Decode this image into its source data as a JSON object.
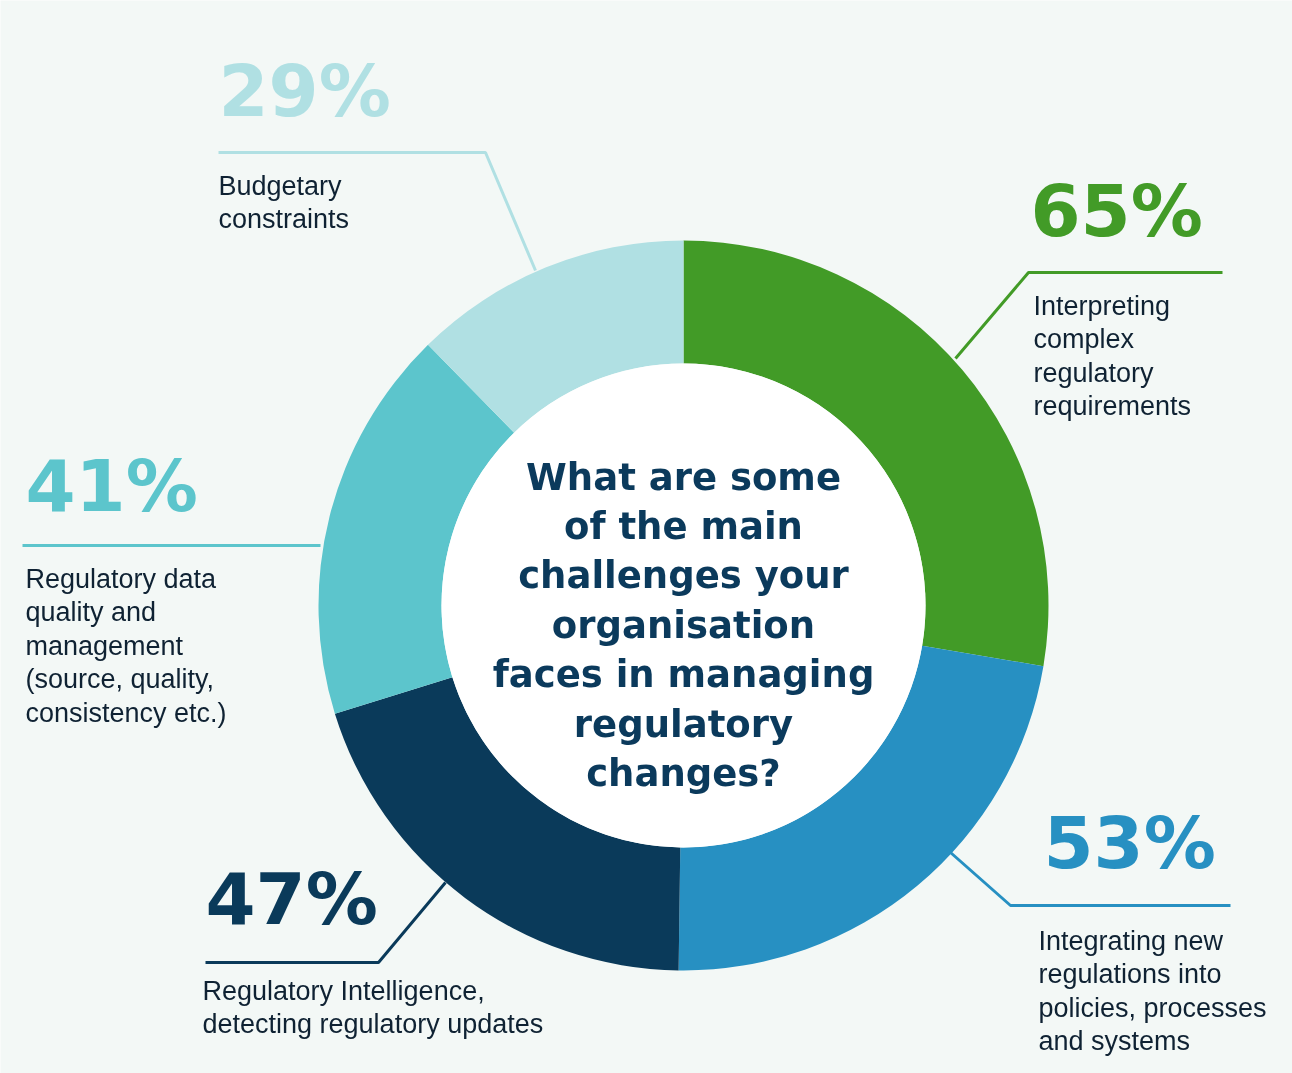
{
  "chart_data": {
    "type": "donut",
    "title": "What are some\nof the main\nchallenges your\norganisation\nfaces in managing\nregulatory\nchanges?",
    "categories": [
      "Interpreting\ncomplex\nregulatory\nrequirements",
      "Integrating new\nregulations into\npolicies, processes\nand systems",
      "Regulatory Intelligence,\ndetecting regulatory updates",
      "Regulatory data\nquality and\nmanagement\n(source, quality,\nconsistency etc.)",
      "Budgetary\nconstraints"
    ],
    "values": [
      65,
      53,
      47,
      41,
      29
    ],
    "colors": [
      "#429b27",
      "#2790c2",
      "#0a3a5a",
      "#5cc5cc",
      "#b0e0e3"
    ],
    "value_labels": [
      "65%",
      "53%",
      "47%",
      "41%",
      "29%"
    ]
  }
}
